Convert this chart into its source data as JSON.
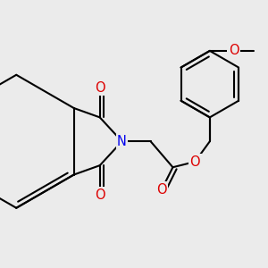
{
  "background_color": "#ebebeb",
  "bond_color": "#000000",
  "bond_width": 1.5,
  "atom_colors": {
    "C": "#000000",
    "N": "#0000ee",
    "O": "#dd0000"
  },
  "font_size": 9.5
}
